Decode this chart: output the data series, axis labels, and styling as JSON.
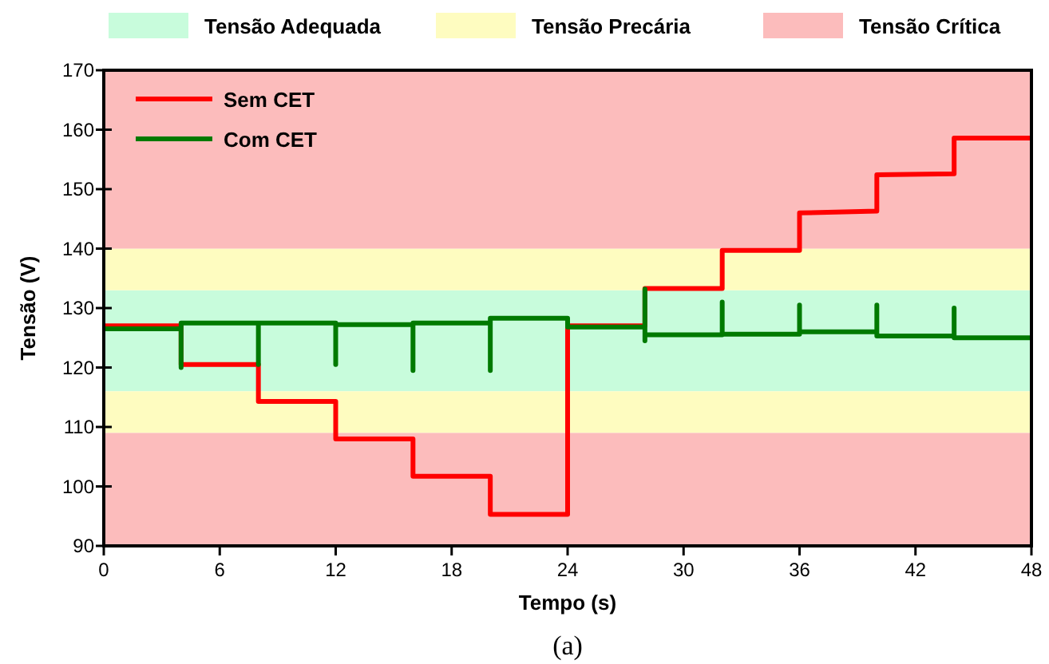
{
  "chart_data": {
    "type": "line",
    "xlabel": "Tempo (s)",
    "ylabel": "Tensão (V)",
    "xlim": [
      0,
      48
    ],
    "ylim": [
      90,
      170
    ],
    "xticks": [
      0,
      6,
      12,
      18,
      24,
      30,
      36,
      42,
      48
    ],
    "yticks": [
      90,
      100,
      110,
      120,
      130,
      140,
      150,
      160,
      170
    ],
    "grid": false,
    "legend": "top left",
    "marker": "none",
    "line_style": "solid",
    "bands": [
      {
        "axis": "y",
        "from": 116,
        "to": 133,
        "label": "Tensão Adequada",
        "color": "#c8fcdc"
      },
      {
        "axis": "y",
        "from": 133,
        "to": 140,
        "label": "Tensão Precária",
        "color": "#fefcc0"
      },
      {
        "axis": "y",
        "from": 109,
        "to": 116,
        "color": "#fefcc0"
      },
      {
        "axis": "y",
        "from": 140,
        "to": 170,
        "label": "Tensão Crítica",
        "color": "#fcbcbc"
      },
      {
        "axis": "y",
        "from": 90,
        "to": 109,
        "color": "#fcbcbc"
      }
    ],
    "series": [
      {
        "name": "Sem CET",
        "color": "#ff0000",
        "x": [
          0,
          4,
          4,
          8,
          8,
          12,
          12,
          16,
          16,
          20,
          20,
          24,
          24,
          28,
          28,
          32,
          32,
          36,
          36,
          40,
          40,
          44,
          44,
          48
        ],
        "values": [
          127,
          127,
          120.5,
          120.5,
          114.3,
          114.3,
          108,
          108,
          101.7,
          101.7,
          95.3,
          95.3,
          127,
          127,
          133.3,
          133.3,
          139.7,
          139.7,
          146,
          146.3,
          152.4,
          152.6,
          158.6,
          158.6
        ]
      },
      {
        "name": "Com CET",
        "color": "#007a00",
        "x": [
          0,
          4,
          4,
          4,
          8,
          8,
          8,
          12,
          12,
          12,
          16,
          16,
          16,
          20,
          20,
          20,
          24,
          24,
          28,
          28,
          28,
          28,
          32,
          32,
          32,
          36,
          36,
          36,
          40,
          40,
          40,
          44,
          44,
          44,
          48
        ],
        "values": [
          126.5,
          126.5,
          120,
          127.5,
          127.5,
          120.5,
          127.5,
          127.5,
          120.5,
          127.2,
          127.2,
          119.5,
          127.5,
          127.5,
          119.5,
          128.3,
          128.3,
          126.8,
          126.8,
          133.2,
          124.5,
          125.5,
          125.5,
          131,
          125.6,
          125.6,
          130.5,
          126,
          126,
          130.5,
          125.3,
          125.3,
          130,
          125,
          125
        ]
      }
    ],
    "annotations": [
      "(a)"
    ]
  }
}
